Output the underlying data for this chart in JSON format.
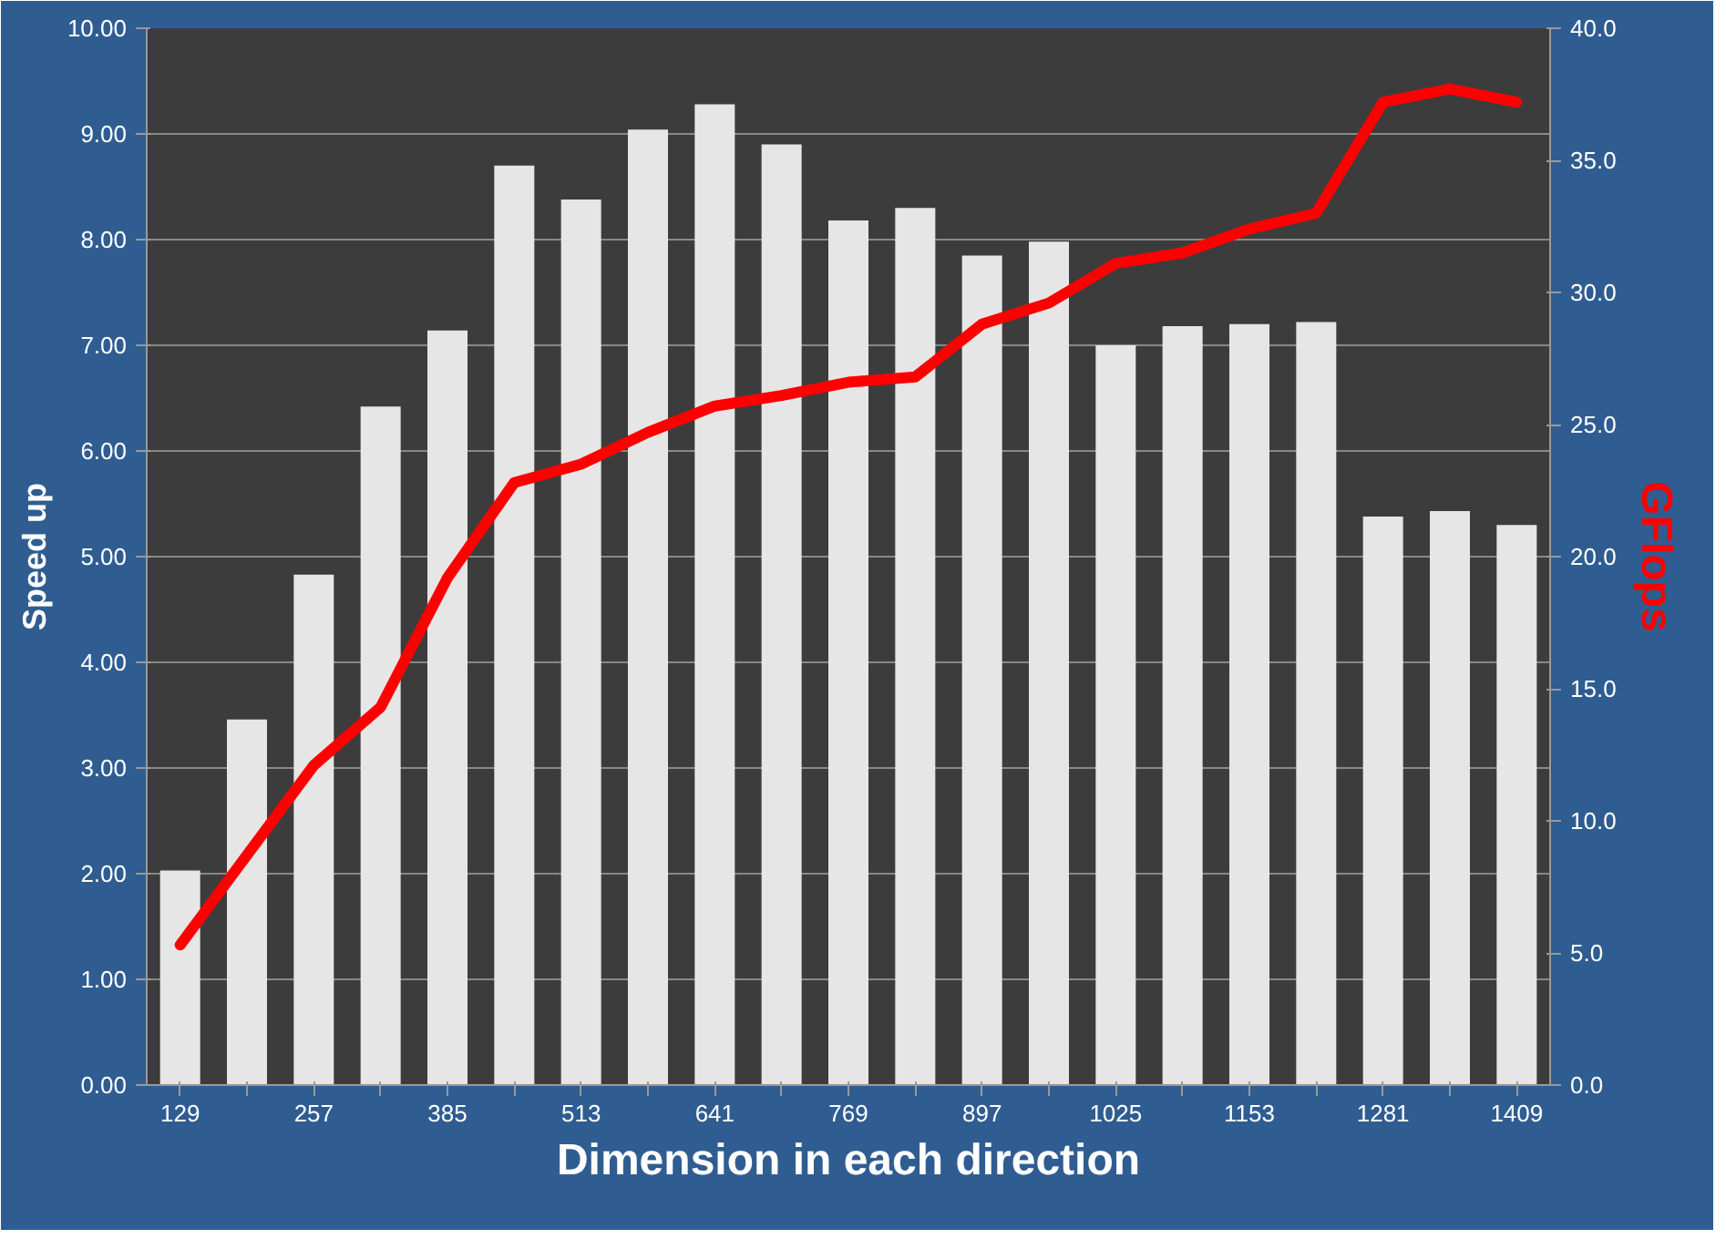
{
  "chart_data": {
    "type": "bar",
    "xlabel": "Dimension in each direction",
    "ylabel": "Speed up",
    "y2label": "GFlops",
    "categories": [
      "129",
      null,
      "257",
      null,
      "385",
      null,
      "513",
      null,
      "641",
      null,
      "769",
      null,
      "897",
      null,
      "1025",
      null,
      "1153",
      null,
      "1281",
      null,
      "1409"
    ],
    "series": [
      {
        "color": "#e6e6e6",
        "values": [
          2.03,
          3.46,
          4.83,
          6.42,
          7.14,
          8.7,
          8.38,
          9.04,
          9.28,
          8.9,
          8.18,
          8.3,
          7.85,
          7.98,
          7.0,
          7.18,
          7.2,
          7.22,
          5.38,
          5.43,
          5.3
        ]
      },
      {
        "type": "line",
        "axis": "y2",
        "color": "#ff0000",
        "values": [
          5.3,
          8.7,
          12.1,
          14.3,
          19.2,
          22.8,
          23.5,
          24.7,
          25.7,
          26.1,
          26.6,
          26.8,
          28.8,
          29.6,
          31.1,
          31.5,
          32.4,
          33.0,
          37.2,
          37.7,
          37.2
        ]
      }
    ],
    "ylim": [
      0,
      10
    ],
    "yticks": [
      {
        "value": 0,
        "label": "0.00"
      },
      {
        "value": 1,
        "label": "1.00"
      },
      {
        "value": 2,
        "label": "2.00"
      },
      {
        "value": 3,
        "label": "3.00"
      },
      {
        "value": 4,
        "label": "4.00"
      },
      {
        "value": 5,
        "label": "5.00"
      },
      {
        "value": 6,
        "label": "6.00"
      },
      {
        "value": 7,
        "label": "7.00"
      },
      {
        "value": 8,
        "label": "8.00"
      },
      {
        "value": 9,
        "label": "9.00"
      },
      {
        "value": 10,
        "label": "10.00"
      }
    ],
    "y2lim": [
      0,
      40
    ],
    "y2ticks": [
      {
        "value": 0,
        "label": "0.0"
      },
      {
        "value": 5,
        "label": "5.0"
      },
      {
        "value": 10,
        "label": "10.0"
      },
      {
        "value": 15,
        "label": "15.0"
      },
      {
        "value": 20,
        "label": "20.0"
      },
      {
        "value": 25,
        "label": "25.0"
      },
      {
        "value": 30,
        "label": "30.0"
      },
      {
        "value": 35,
        "label": "35.0"
      },
      {
        "value": 40,
        "label": "40.0"
      }
    ],
    "grid": "y",
    "marker": "none",
    "line_style": "solid"
  }
}
